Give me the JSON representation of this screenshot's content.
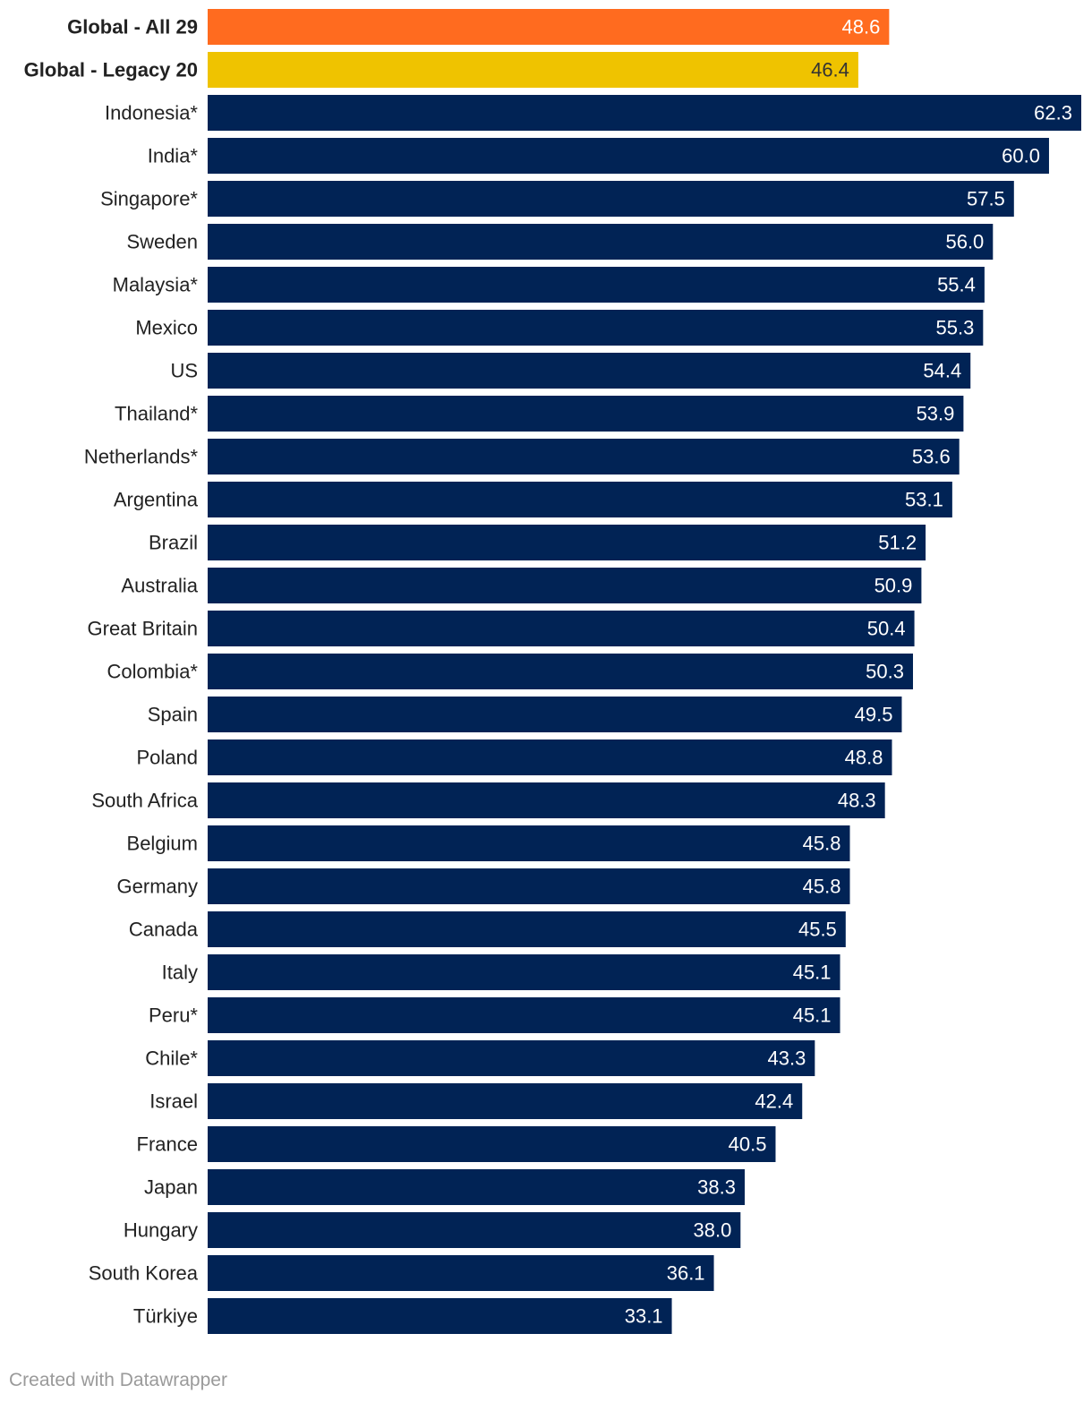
{
  "chart_data": {
    "type": "bar",
    "orientation": "horizontal",
    "title": "",
    "xlabel": "",
    "ylabel": "",
    "xlim": [
      0,
      62.3
    ],
    "grid": false,
    "legend": "none",
    "bold_categories": [
      "Global - All 29",
      "Global - Legacy 20"
    ],
    "colors": {
      "Global - All 29": "#ff6b1f",
      "Global - Legacy 20": "#efc300",
      "default": "#012355"
    },
    "label_colors": {
      "Global - All 29": "#ffffff",
      "Global - Legacy 20": "#333333",
      "default": "#ffffff"
    },
    "categories": [
      "Global - All 29",
      "Global - Legacy 20",
      "Indonesia*",
      "India*",
      "Singapore*",
      "Sweden",
      "Malaysia*",
      "Mexico",
      "US",
      "Thailand*",
      "Netherlands*",
      "Argentina",
      "Brazil",
      "Australia",
      "Great Britain",
      "Colombia*",
      "Spain",
      "Poland",
      "South Africa",
      "Belgium",
      "Germany",
      "Canada",
      "Italy",
      "Peru*",
      "Chile*",
      "Israel",
      "France",
      "Japan",
      "Hungary",
      "South Korea",
      "Türkiye"
    ],
    "values": [
      48.6,
      46.4,
      62.3,
      60.0,
      57.5,
      56.0,
      55.4,
      55.3,
      54.4,
      53.9,
      53.6,
      53.1,
      51.2,
      50.9,
      50.4,
      50.3,
      49.5,
      48.8,
      48.3,
      45.8,
      45.8,
      45.5,
      45.1,
      45.1,
      43.3,
      42.4,
      40.5,
      38.3,
      38.0,
      36.1,
      33.1
    ],
    "value_labels": [
      "48.6",
      "46.4",
      "62.3",
      "60.0",
      "57.5",
      "56.0",
      "55.4",
      "55.3",
      "54.4",
      "53.9",
      "53.6",
      "53.1",
      "51.2",
      "50.9",
      "50.4",
      "50.3",
      "49.5",
      "48.8",
      "48.3",
      "45.8",
      "45.8",
      "45.5",
      "45.1",
      "45.1",
      "43.3",
      "42.4",
      "40.5",
      "38.3",
      "38.0",
      "36.1",
      "33.1"
    ]
  },
  "footer": {
    "credit": "Created with Datawrapper"
  }
}
